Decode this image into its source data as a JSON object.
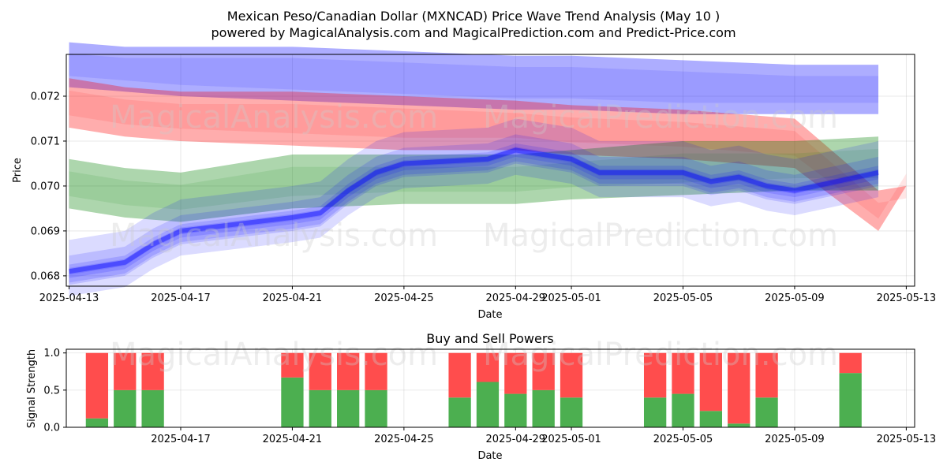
{
  "title_line1": "Mexican Peso/Canadian Dollar (MXNCAD) Price Wave Trend Analysis (May 10 )",
  "title_line2": "powered by MagicalAnalysis.com and MagicalPrediction.com and Predict-Price.com",
  "watermarks": [
    "MagicalAnalysis.com",
    "MagicalPrediction.com"
  ],
  "colors": {
    "blue_band": "#0000ff",
    "red_band": "#ff0000",
    "green_band": "#008000",
    "buy": "#4caf50",
    "sell": "#ff4d4d"
  },
  "chart_data": [
    {
      "type": "area",
      "xlabel": "Date",
      "ylabel": "Price",
      "xlim": [
        "2025-04-13",
        "2025-05-13"
      ],
      "ylim": [
        0.06777,
        0.07293
      ],
      "grid": true,
      "xticks": [
        "2025-04-13",
        "2025-04-17",
        "2025-04-21",
        "2025-04-25",
        "2025-04-29",
        "2025-05-01",
        "2025-05-05",
        "2025-05-09",
        "2025-05-13"
      ],
      "yticks": [
        0.068,
        0.069,
        0.07,
        0.071,
        0.072
      ],
      "series": [
        {
          "color": "blue",
          "band": "upper",
          "x": [
            "2025-04-13",
            "2025-04-15",
            "2025-04-17",
            "2025-04-21",
            "2025-04-25",
            "2025-04-29",
            "2025-05-01",
            "2025-05-05",
            "2025-05-09",
            "2025-05-12"
          ],
          "upper": [
            0.0732,
            0.0731,
            0.0731,
            0.0731,
            0.073,
            0.0729,
            0.0729,
            0.0728,
            0.0727,
            0.0727
          ],
          "lower": [
            0.0722,
            0.0721,
            0.072,
            0.0719,
            0.0718,
            0.0717,
            0.0717,
            0.0716,
            0.0716,
            0.0716
          ]
        },
        {
          "color": "red",
          "band": "middle",
          "x": [
            "2025-04-13",
            "2025-04-15",
            "2025-04-17",
            "2025-04-21",
            "2025-04-25",
            "2025-04-29",
            "2025-05-01",
            "2025-05-05",
            "2025-05-09",
            "2025-05-12",
            "2025-05-13"
          ],
          "upper": [
            0.0724,
            0.0722,
            0.0721,
            0.0721,
            0.072,
            0.0719,
            0.0718,
            0.0717,
            0.0715,
            0.0699,
            0.07
          ],
          "lower": [
            0.0713,
            0.0711,
            0.071,
            0.0709,
            0.0708,
            0.0708,
            0.0707,
            0.0706,
            0.0704,
            0.069,
            0.07
          ]
        },
        {
          "color": "green",
          "band": "lower",
          "x": [
            "2025-04-13",
            "2025-04-15",
            "2025-04-17",
            "2025-04-21",
            "2025-04-25",
            "2025-04-29",
            "2025-05-01",
            "2025-05-05",
            "2025-05-09",
            "2025-05-12"
          ],
          "upper": [
            0.0706,
            0.0704,
            0.0703,
            0.0707,
            0.0707,
            0.0707,
            0.0708,
            0.071,
            0.071,
            0.0711
          ],
          "lower": [
            0.0695,
            0.0693,
            0.0692,
            0.0695,
            0.0696,
            0.0696,
            0.0697,
            0.0698,
            0.0699,
            0.0699
          ]
        },
        {
          "color": "blue",
          "band": "price-wave",
          "x": [
            "2025-04-13",
            "2025-04-14",
            "2025-04-15",
            "2025-04-16",
            "2025-04-17",
            "2025-04-21",
            "2025-04-22",
            "2025-04-23",
            "2025-04-24",
            "2025-04-25",
            "2025-04-28",
            "2025-04-29",
            "2025-04-30",
            "2025-05-01",
            "2025-05-02",
            "2025-05-05",
            "2025-05-06",
            "2025-05-07",
            "2025-05-08",
            "2025-05-09",
            "2025-05-12"
          ],
          "values": [
            0.0681,
            0.0682,
            0.0683,
            0.0687,
            0.069,
            0.0693,
            0.0694,
            0.0699,
            0.0703,
            0.0705,
            0.0706,
            0.0708,
            0.0707,
            0.0706,
            0.0703,
            0.0703,
            0.0701,
            0.0702,
            0.07,
            0.0699,
            0.0703
          ]
        }
      ]
    },
    {
      "type": "bar",
      "title": "Buy and Sell Powers",
      "xlabel": "Date",
      "ylabel": "Signal Strength",
      "ylim": [
        0,
        1.05
      ],
      "grid": true,
      "xticks": [
        "2025-04-17",
        "2025-04-21",
        "2025-04-25",
        "2025-04-29",
        "2025-05-01",
        "2025-05-05",
        "2025-05-09",
        "2025-05-13"
      ],
      "yticks": [
        "0.0",
        "0.5",
        "1.0"
      ],
      "categories": [
        "2025-04-14",
        "2025-04-15",
        "2025-04-16",
        "2025-04-21",
        "2025-04-22",
        "2025-04-23",
        "2025-04-24",
        "2025-04-27",
        "2025-04-28",
        "2025-04-29",
        "2025-04-30",
        "2025-05-01",
        "2025-05-04",
        "2025-05-05",
        "2025-05-06",
        "2025-05-07",
        "2025-05-08",
        "2025-05-11"
      ],
      "series": [
        {
          "name": "buy",
          "values": [
            0.12,
            0.5,
            0.5,
            0.67,
            0.5,
            0.5,
            0.5,
            0.4,
            0.61,
            0.45,
            0.5,
            0.4,
            0.4,
            0.45,
            0.22,
            0.05,
            0.4,
            0.73
          ]
        },
        {
          "name": "sell",
          "values": [
            0.88,
            0.5,
            0.5,
            0.33,
            0.5,
            0.5,
            0.5,
            0.6,
            0.39,
            0.55,
            0.5,
            0.6,
            0.6,
            0.55,
            0.78,
            0.95,
            0.6,
            0.27
          ]
        }
      ]
    }
  ]
}
